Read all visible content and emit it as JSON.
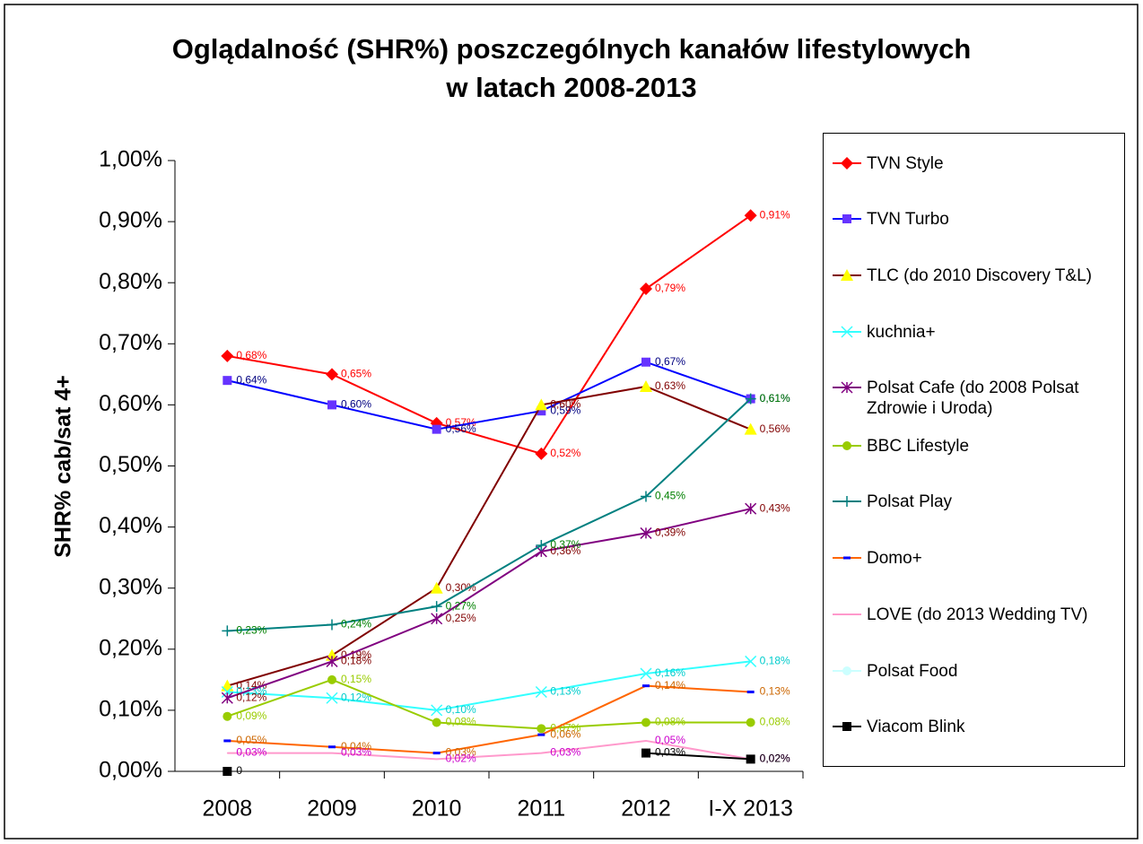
{
  "chart_data": {
    "type": "line",
    "title": [
      "Oglądalność (SHR%) poszczególnych kanałów lifestylowych",
      "w latach 2008-2013"
    ],
    "y_label": "SHR% cab/sat 4+",
    "categories": [
      "2008",
      "2009",
      "2010",
      "2011",
      "2012",
      "I-X 2013"
    ],
    "ylim": [
      0,
      1
    ],
    "yticks": [
      {
        "value": 0,
        "label": "0,00%"
      },
      {
        "value": 0.1,
        "label": "0,10%"
      },
      {
        "value": 0.2,
        "label": "0,20%"
      },
      {
        "value": 0.3,
        "label": "0,30%"
      },
      {
        "value": 0.4,
        "label": "0,40%"
      },
      {
        "value": 0.5,
        "label": "0,50%"
      },
      {
        "value": 0.6,
        "label": "0,60%"
      },
      {
        "value": 0.7,
        "label": "0,70%"
      },
      {
        "value": 0.8,
        "label": "0,80%"
      },
      {
        "value": 0.9,
        "label": "0,90%"
      },
      {
        "value": 1,
        "label": "1,00%"
      }
    ],
    "legend": "right",
    "series": [
      {
        "name": "TVN Style",
        "color": "#ff0000",
        "marker": "diamond",
        "marker_color": "#ff0000",
        "label_color": "#ff0000",
        "values": [
          0.68,
          0.65,
          0.57,
          0.52,
          0.79,
          0.91
        ],
        "value_labels": [
          "0,68%",
          "0,65%",
          "0,57%",
          "0,52%",
          "0,79%",
          "0,91%"
        ]
      },
      {
        "name": "TVN Turbo",
        "color": "#0000ff",
        "marker": "square",
        "marker_color": "#6633ff",
        "label_color": "#000080",
        "values": [
          0.64,
          0.6,
          0.56,
          0.59,
          0.67,
          0.61
        ],
        "value_labels": [
          "0,64%",
          "0,60%",
          "0,56%",
          "0,59%",
          "0,67%",
          "0,61%"
        ]
      },
      {
        "name": "TLC (do 2010 Discovery T&L)",
        "color": "#800000",
        "marker": "triangle",
        "marker_color": "#ffff00",
        "label_color": "#800000",
        "values": [
          0.14,
          0.19,
          0.3,
          0.6,
          0.63,
          0.56
        ],
        "value_labels": [
          "0,14%",
          "0,19%",
          "0,30%",
          "0,60%",
          "0,63%",
          "0,56%"
        ]
      },
      {
        "name": "kuchnia+",
        "color": "#33ffff",
        "marker": "x",
        "marker_color": "#33ffff",
        "label_color": "#00cccc",
        "values": [
          0.13,
          0.12,
          0.1,
          0.13,
          0.16,
          0.18
        ],
        "value_labels": [
          "0,13%",
          "0,12%",
          "0,10%",
          "0,13%",
          "0,16%",
          "0,18%"
        ]
      },
      {
        "name": "Polsat Cafe (do 2008 Polsat Zdrowie i Uroda)",
        "color": "#800080",
        "marker": "star",
        "marker_color": "#800080",
        "label_color": "#800000",
        "values": [
          0.12,
          0.18,
          0.25,
          0.36,
          0.39,
          0.43
        ],
        "value_labels": [
          "0,12%",
          "0,18%",
          "0,25%",
          "0,36%",
          "0,39%",
          "0,43%"
        ]
      },
      {
        "name": "BBC Lifestyle",
        "color": "#99cc00",
        "marker": "circle",
        "marker_color": "#99cc00",
        "label_color": "#99cc00",
        "values": [
          0.09,
          0.15,
          0.08,
          0.07,
          0.08,
          0.08
        ],
        "value_labels": [
          "0,09%",
          "0,15%",
          "0,08%",
          "0,07%",
          "0,08%",
          "0,08%"
        ]
      },
      {
        "name": "Polsat Play",
        "color": "#008080",
        "marker": "plus",
        "marker_color": "#008080",
        "label_color": "#008000",
        "values": [
          0.23,
          0.24,
          0.27,
          0.37,
          0.45,
          0.61
        ],
        "value_labels": [
          "0,23%",
          "0,24%",
          "0,27%",
          "0,37%",
          "0,45%",
          "0,61%"
        ]
      },
      {
        "name": "Domo+",
        "color": "#ff6600",
        "marker": "dash",
        "marker_color": "#0000ff",
        "label_color": "#cc6600",
        "values": [
          0.05,
          0.04,
          0.03,
          0.06,
          0.14,
          0.13
        ],
        "value_labels": [
          "0,05%",
          "0,04%",
          "0,03%",
          "0,06%",
          "0,14%",
          "0,13%"
        ]
      },
      {
        "name": "LOVE (do 2013 Wedding TV)",
        "color": "#ff99cc",
        "marker": "none",
        "marker_color": "#ff99cc",
        "label_color": "#cc00cc",
        "values": [
          0.03,
          0.03,
          0.02,
          0.03,
          0.05,
          0.02
        ],
        "value_labels": [
          "0,03%",
          "0,03%",
          "0,02%",
          "0,03%",
          "0,05%",
          "0,02%"
        ]
      },
      {
        "name": "Polsat Food",
        "color": "#ccffff",
        "marker": "circle",
        "marker_color": "#ccffff",
        "label_color": "#66cccc",
        "values": [
          null,
          null,
          null,
          null,
          null,
          null
        ]
      },
      {
        "name": "Viacom Blink",
        "color": "#000000",
        "marker": "square",
        "marker_color": "#000000",
        "label_color": "#000000",
        "values": [
          0,
          null,
          null,
          null,
          0.03,
          0.02
        ],
        "value_labels": [
          "0",
          null,
          null,
          null,
          "0,03%",
          "0,02%"
        ]
      }
    ]
  }
}
